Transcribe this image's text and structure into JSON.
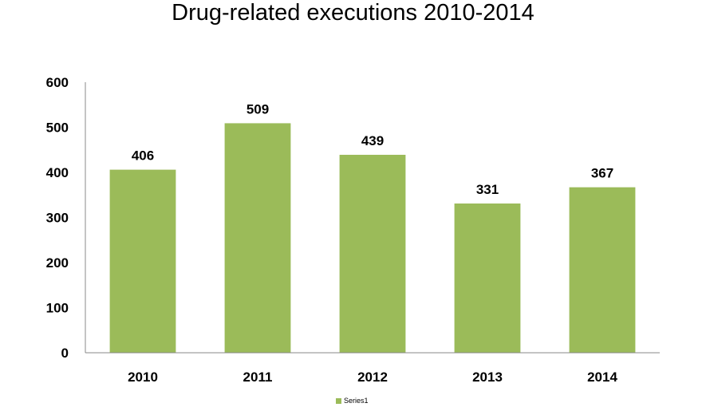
{
  "chart_data": {
    "type": "bar",
    "title": "Drug-related executions 2010-2014",
    "categories": [
      "2010",
      "2011",
      "2012",
      "2013",
      "2014"
    ],
    "series": [
      {
        "name": "Series1",
        "values": [
          406,
          509,
          439,
          331,
          367
        ],
        "color": "#9bbb59"
      }
    ],
    "yticks": [
      0,
      100,
      200,
      300,
      400,
      500,
      600
    ],
    "ylim": [
      0,
      600
    ],
    "xlabel": "",
    "ylabel": "",
    "grid": false,
    "legend": "bottom",
    "data_labels": true
  }
}
